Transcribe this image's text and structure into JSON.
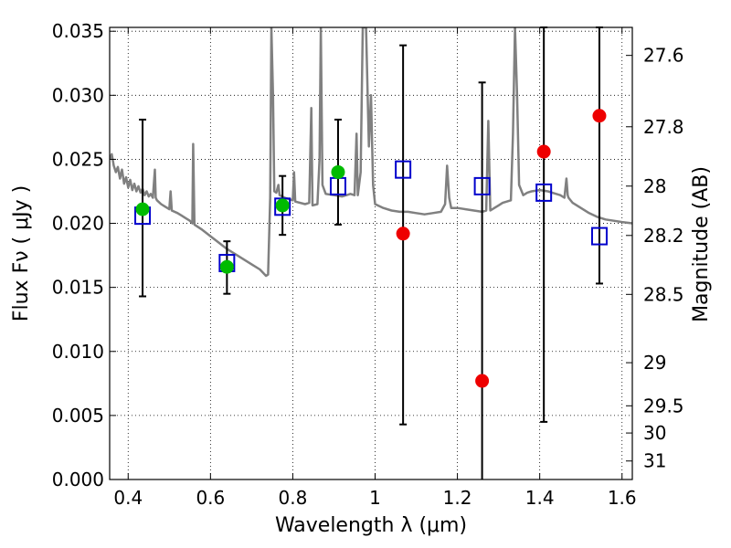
{
  "chart_data": {
    "type": "scatter",
    "xlabel": "Wavelength  λ (μm)",
    "ylabel": "Flux  Fν  ( μJy )",
    "y2label": "Magnitude (AB)",
    "xlim": [
      0.355,
      1.625
    ],
    "ylim": [
      0.0,
      0.0353
    ],
    "x_ticks": [
      0.4,
      0.6,
      0.8,
      1.0,
      1.2,
      1.4,
      1.6
    ],
    "x_tick_labels": [
      "0.4",
      "0.6",
      "0.8",
      "1",
      "1.2",
      "1.4",
      "1.6"
    ],
    "y_ticks": [
      0.0,
      0.005,
      0.01,
      0.015,
      0.02,
      0.025,
      0.03,
      0.035
    ],
    "y_tick_labels": [
      "0.000",
      "0.005",
      "0.010",
      "0.015",
      "0.020",
      "0.025",
      "0.030",
      "0.035"
    ],
    "y2_ticks": [
      27.6,
      27.8,
      28,
      28.2,
      28.5,
      29,
      29.5,
      30,
      31
    ],
    "y2_tick_labels": [
      "27.6",
      "27.8",
      "28",
      "28.2",
      "28.5",
      "29",
      "29.5",
      "30",
      "31"
    ],
    "grid": true,
    "colors": {
      "model": "#808080",
      "green": "#00bb00",
      "red": "#ee0000",
      "box": "#0000cc",
      "errorbar": "#000000"
    },
    "observed": [
      {
        "x": 0.435,
        "y": 0.0211,
        "yerr_low": 0.0143,
        "yerr_high": 0.0281,
        "color": "green"
      },
      {
        "x": 0.64,
        "y": 0.0166,
        "yerr_low": 0.0145,
        "yerr_high": 0.0186,
        "color": "green"
      },
      {
        "x": 0.775,
        "y": 0.0214,
        "yerr_low": 0.0191,
        "yerr_high": 0.0237,
        "color": "green"
      },
      {
        "x": 0.91,
        "y": 0.024,
        "yerr_low": 0.0199,
        "yerr_high": 0.0281,
        "color": "green"
      },
      {
        "x": 1.068,
        "y": 0.0192,
        "yerr_low": 0.0043,
        "yerr_high": 0.0339,
        "color": "red"
      },
      {
        "x": 1.26,
        "y": 0.0077,
        "yerr_low": -0.0016,
        "yerr_high": 0.031,
        "color": "red"
      },
      {
        "x": 1.41,
        "y": 0.0256,
        "yerr_low": 0.0045,
        "yerr_high": 0.0353,
        "color": "red"
      },
      {
        "x": 1.545,
        "y": 0.0284,
        "yerr_low": 0.0153,
        "yerr_high": 0.0353,
        "color": "red"
      }
    ],
    "model_points": [
      {
        "x": 0.435,
        "y": 0.0206
      },
      {
        "x": 0.64,
        "y": 0.0169
      },
      {
        "x": 0.775,
        "y": 0.0213
      },
      {
        "x": 0.91,
        "y": 0.0229
      },
      {
        "x": 1.068,
        "y": 0.0242
      },
      {
        "x": 1.26,
        "y": 0.0229
      },
      {
        "x": 1.41,
        "y": 0.0224
      },
      {
        "x": 1.545,
        "y": 0.019
      }
    ],
    "model_spectrum": [
      [
        0.355,
        0.025
      ],
      [
        0.36,
        0.0254
      ],
      [
        0.365,
        0.0245
      ],
      [
        0.37,
        0.024
      ],
      [
        0.375,
        0.0244
      ],
      [
        0.38,
        0.0235
      ],
      [
        0.385,
        0.0242
      ],
      [
        0.39,
        0.0231
      ],
      [
        0.395,
        0.0236
      ],
      [
        0.4,
        0.0228
      ],
      [
        0.405,
        0.0234
      ],
      [
        0.41,
        0.0226
      ],
      [
        0.415,
        0.0231
      ],
      [
        0.42,
        0.0225
      ],
      [
        0.425,
        0.0229
      ],
      [
        0.43,
        0.0224
      ],
      [
        0.435,
        0.0227
      ],
      [
        0.44,
        0.0222
      ],
      [
        0.445,
        0.0225
      ],
      [
        0.45,
        0.0221
      ],
      [
        0.455,
        0.0223
      ],
      [
        0.46,
        0.022
      ],
      [
        0.465,
        0.0242
      ],
      [
        0.467,
        0.022
      ],
      [
        0.47,
        0.0218
      ],
      [
        0.48,
        0.0215
      ],
      [
        0.49,
        0.0213
      ],
      [
        0.495,
        0.0212
      ],
      [
        0.5,
        0.0211
      ],
      [
        0.503,
        0.0225
      ],
      [
        0.506,
        0.021
      ],
      [
        0.52,
        0.0208
      ],
      [
        0.53,
        0.0206
      ],
      [
        0.54,
        0.0204
      ],
      [
        0.55,
        0.0202
      ],
      [
        0.556,
        0.02
      ],
      [
        0.558,
        0.0262
      ],
      [
        0.561,
        0.0199
      ],
      [
        0.58,
        0.0195
      ],
      [
        0.6,
        0.019
      ],
      [
        0.62,
        0.0185
      ],
      [
        0.64,
        0.018
      ],
      [
        0.66,
        0.0176
      ],
      [
        0.68,
        0.0172
      ],
      [
        0.7,
        0.0168
      ],
      [
        0.72,
        0.0164
      ],
      [
        0.735,
        0.0159
      ],
      [
        0.74,
        0.016
      ],
      [
        0.745,
        0.022
      ],
      [
        0.748,
        0.0353
      ],
      [
        0.752,
        0.03
      ],
      [
        0.755,
        0.0225
      ],
      [
        0.76,
        0.0224
      ],
      [
        0.765,
        0.023
      ],
      [
        0.768,
        0.0222
      ],
      [
        0.78,
        0.022
      ],
      [
        0.79,
        0.0219
      ],
      [
        0.8,
        0.0218
      ],
      [
        0.803,
        0.024
      ],
      [
        0.806,
        0.0217
      ],
      [
        0.83,
        0.0215
      ],
      [
        0.84,
        0.0216
      ],
      [
        0.845,
        0.029
      ],
      [
        0.848,
        0.0214
      ],
      [
        0.86,
        0.0215
      ],
      [
        0.865,
        0.025
      ],
      [
        0.868,
        0.0353
      ],
      [
        0.872,
        0.023
      ],
      [
        0.88,
        0.0223
      ],
      [
        0.9,
        0.0222
      ],
      [
        0.92,
        0.0221
      ],
      [
        0.94,
        0.0223
      ],
      [
        0.95,
        0.0222
      ],
      [
        0.955,
        0.027
      ],
      [
        0.958,
        0.0222
      ],
      [
        0.965,
        0.024
      ],
      [
        0.97,
        0.0353
      ],
      [
        0.978,
        0.0353
      ],
      [
        0.985,
        0.026
      ],
      [
        0.99,
        0.03
      ],
      [
        0.995,
        0.023
      ],
      [
        1.0,
        0.0215
      ],
      [
        1.02,
        0.0212
      ],
      [
        1.04,
        0.021
      ],
      [
        1.06,
        0.0209
      ],
      [
        1.08,
        0.0209
      ],
      [
        1.1,
        0.0208
      ],
      [
        1.12,
        0.0207
      ],
      [
        1.14,
        0.0208
      ],
      [
        1.16,
        0.0209
      ],
      [
        1.17,
        0.0215
      ],
      [
        1.175,
        0.0245
      ],
      [
        1.18,
        0.022
      ],
      [
        1.185,
        0.0212
      ],
      [
        1.2,
        0.0212
      ],
      [
        1.22,
        0.0211
      ],
      [
        1.24,
        0.021
      ],
      [
        1.26,
        0.0209
      ],
      [
        1.27,
        0.021
      ],
      [
        1.275,
        0.028
      ],
      [
        1.28,
        0.021
      ],
      [
        1.29,
        0.0212
      ],
      [
        1.3,
        0.0214
      ],
      [
        1.31,
        0.0216
      ],
      [
        1.32,
        0.0217
      ],
      [
        1.33,
        0.0218
      ],
      [
        1.335,
        0.027
      ],
      [
        1.34,
        0.0353
      ],
      [
        1.345,
        0.03
      ],
      [
        1.35,
        0.023
      ],
      [
        1.36,
        0.0222
      ],
      [
        1.37,
        0.0224
      ],
      [
        1.38,
        0.0225
      ],
      [
        1.4,
        0.0226
      ],
      [
        1.42,
        0.0225
      ],
      [
        1.43,
        0.0224
      ],
      [
        1.45,
        0.0222
      ],
      [
        1.46,
        0.022
      ],
      [
        1.465,
        0.0235
      ],
      [
        1.468,
        0.0222
      ],
      [
        1.47,
        0.022
      ],
      [
        1.48,
        0.0216
      ],
      [
        1.5,
        0.0212
      ],
      [
        1.52,
        0.0208
      ],
      [
        1.54,
        0.0205
      ],
      [
        1.56,
        0.0203
      ],
      [
        1.58,
        0.0202
      ],
      [
        1.6,
        0.0201
      ],
      [
        1.625,
        0.02
      ]
    ]
  }
}
